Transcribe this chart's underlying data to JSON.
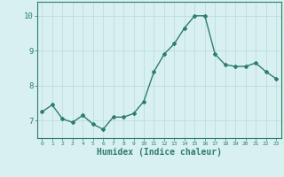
{
  "x": [
    0,
    1,
    2,
    3,
    4,
    5,
    6,
    7,
    8,
    9,
    10,
    11,
    12,
    13,
    14,
    15,
    16,
    17,
    18,
    19,
    20,
    21,
    22,
    23
  ],
  "y": [
    7.25,
    7.45,
    7.05,
    6.95,
    7.15,
    6.9,
    6.75,
    7.1,
    7.1,
    7.2,
    7.55,
    8.4,
    8.9,
    9.2,
    9.65,
    10.0,
    10.0,
    8.9,
    8.6,
    8.55,
    8.55,
    8.65,
    8.4,
    8.2
  ],
  "line_color": "#2e7d6e",
  "marker": "D",
  "marker_size": 2,
  "linewidth": 1.0,
  "bg_color": "#d8f0f0",
  "grid_color": "#b8dada",
  "tick_color": "#2e7d6e",
  "label_color": "#2e7d6e",
  "xlabel": "Humidex (Indice chaleur)",
  "xlabel_fontsize": 7,
  "yticks": [
    7,
    8,
    9,
    10
  ],
  "ylim": [
    6.5,
    10.4
  ],
  "xlim": [
    -0.5,
    23.5
  ],
  "xtick_labels": [
    "0",
    "1",
    "2",
    "3",
    "4",
    "5",
    "6",
    "7",
    "8",
    "9",
    "10",
    "11",
    "12",
    "13",
    "14",
    "15",
    "16",
    "17",
    "18",
    "19",
    "20",
    "21",
    "22",
    "23"
  ]
}
